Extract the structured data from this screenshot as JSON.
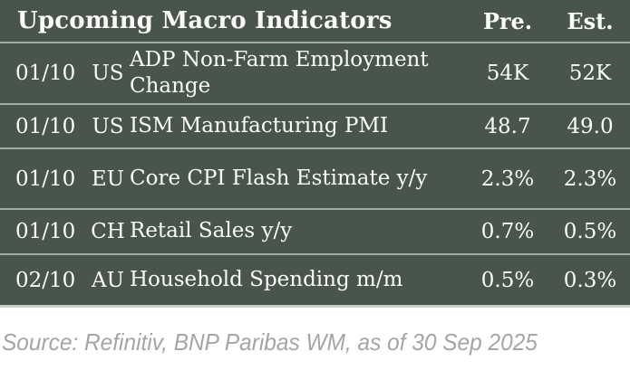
{
  "colors": {
    "table_bg": "#48544D",
    "divider": "#9FAEA3",
    "bottom_edge": "#C6D1C7",
    "text": "#FAFAF7",
    "source_text": "#A5A5A5",
    "page_bg": "#FFFFFF"
  },
  "table": {
    "title": "Upcoming Macro Indicators",
    "columns": {
      "pre": "Pre.",
      "est": "Est."
    },
    "rows": [
      {
        "date": "01/10",
        "country": "US",
        "indicator": "ADP Non-Farm Employment Change",
        "pre": "54K",
        "est": "52K"
      },
      {
        "date": "01/10",
        "country": "US",
        "indicator": "ISM Manufacturing PMI",
        "pre": "48.7",
        "est": "49.0"
      },
      {
        "date": "01/10",
        "country": "EU",
        "indicator": "Core CPI Flash Estimate y/y",
        "pre": "2.3%",
        "est": "2.3%"
      },
      {
        "date": "01/10",
        "country": "CH",
        "indicator": "Retail Sales y/y",
        "pre": "0.7%",
        "est": "0.5%"
      },
      {
        "date": "02/10",
        "country": "AU",
        "indicator": "Household Spending m/m",
        "pre": "0.5%",
        "est": "0.3%"
      }
    ]
  },
  "footer": {
    "source": "Source: Refinitiv, BNP Paribas WM, as of 30 Sep 2025"
  }
}
